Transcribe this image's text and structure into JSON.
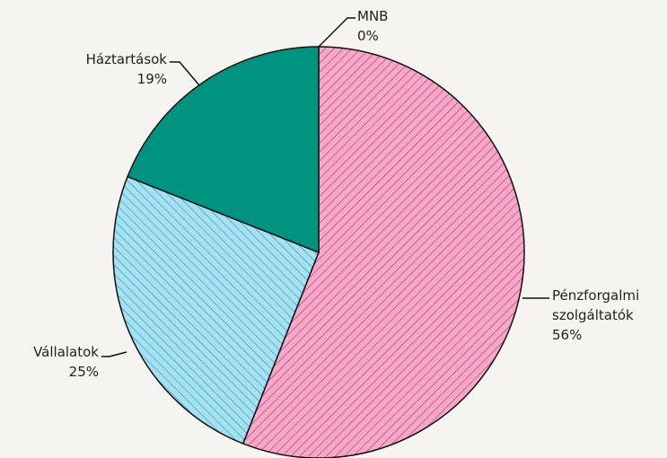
{
  "chart_data": {
    "type": "pie",
    "categories": [
      "MNB",
      "Pénzforgalmi szolgáltatók",
      "Vállalatok",
      "Háztartások"
    ],
    "values": [
      0,
      56,
      25,
      19
    ],
    "value_labels": [
      "0%",
      "56%",
      "25%",
      "19%"
    ],
    "colors": [
      "#8fa8c8",
      "#f4a9c8",
      "#a6e1f2",
      "#009480"
    ],
    "hatched": [
      false,
      true,
      true,
      false
    ],
    "hatch_colors": [
      "#5a7090",
      "#c8306e",
      "#2c95ba",
      "#006b5c"
    ]
  }
}
